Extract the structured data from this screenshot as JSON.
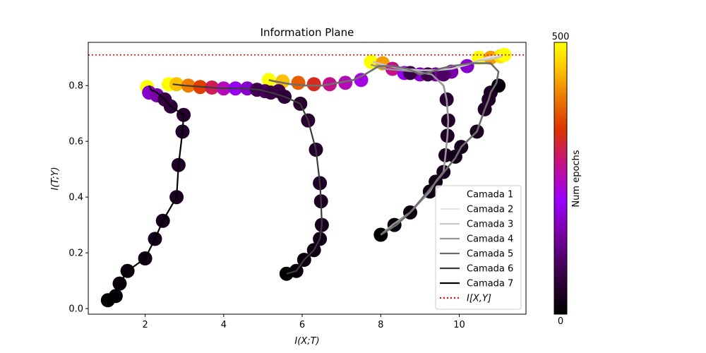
{
  "chart_data": {
    "type": "line",
    "title": "Information Plane",
    "xlabel": "I(X;T)",
    "ylabel": "I(T;Y)",
    "xlim": [
      0.55,
      11.7
    ],
    "ylim": [
      -0.02,
      0.955
    ],
    "xticks": [
      2,
      4,
      6,
      8,
      10
    ],
    "yticks": [
      0.0,
      0.2,
      0.4,
      0.6,
      0.8
    ],
    "xtick_labels": [
      "2",
      "4",
      "6",
      "8",
      "10"
    ],
    "ytick_labels": [
      "0.0",
      "0.2",
      "0.4",
      "0.6",
      "0.8"
    ],
    "grid": false,
    "legend_position": "lower-right",
    "reference_line": {
      "name": "I[X,Y]",
      "y": 0.91,
      "color": "#ff0000",
      "style": "dotted"
    },
    "colorbar": {
      "label": "Num epochs",
      "min_label": "0",
      "max_label": "500",
      "colormap": "gnuplot"
    },
    "series": [
      {
        "name": "Camada 1",
        "color": "#ffffff",
        "points": []
      },
      {
        "name": "Camada 2",
        "color": "#e6e6e6",
        "points": [
          [
            10.5,
            0.89
          ],
          [
            10.7,
            0.9
          ],
          [
            10.9,
            0.905
          ],
          [
            11.1,
            0.91
          ]
        ]
      },
      {
        "name": "Camada 3",
        "color": "#c8c8c8",
        "points": [
          [
            7.8,
            0.885
          ],
          [
            8.2,
            0.87
          ],
          [
            8.6,
            0.86
          ],
          [
            9.0,
            0.855
          ],
          [
            9.4,
            0.855
          ],
          [
            9.8,
            0.86
          ],
          [
            10.2,
            0.875
          ],
          [
            10.5,
            0.89
          ],
          [
            10.8,
            0.895
          ],
          [
            11.1,
            0.905
          ]
        ]
      },
      {
        "name": "Camada 4",
        "color": "#969696",
        "points": [
          [
            8.0,
            0.265
          ],
          [
            8.3,
            0.3
          ],
          [
            8.75,
            0.345
          ],
          [
            9.25,
            0.42
          ],
          [
            9.4,
            0.455
          ],
          [
            9.6,
            0.49
          ],
          [
            9.65,
            0.55
          ],
          [
            9.7,
            0.62
          ],
          [
            9.72,
            0.675
          ],
          [
            9.68,
            0.75
          ],
          [
            9.6,
            0.8
          ],
          [
            9.3,
            0.84
          ],
          [
            8.9,
            0.85
          ],
          [
            8.5,
            0.855
          ],
          [
            8.1,
            0.86
          ],
          [
            7.75,
            0.875
          ]
        ]
      },
      {
        "name": "Camada 5",
        "color": "#6e6e6e",
        "points": [
          [
            8.0,
            0.265
          ],
          [
            8.4,
            0.3
          ],
          [
            8.75,
            0.345
          ],
          [
            9.2,
            0.42
          ],
          [
            9.5,
            0.47
          ],
          [
            9.9,
            0.54
          ],
          [
            10.05,
            0.58
          ],
          [
            10.45,
            0.635
          ],
          [
            10.65,
            0.715
          ],
          [
            10.75,
            0.75
          ],
          [
            10.8,
            0.775
          ],
          [
            10.95,
            0.81
          ],
          [
            11.0,
            0.85
          ],
          [
            10.8,
            0.88
          ],
          [
            10.3,
            0.88
          ],
          [
            9.8,
            0.87
          ],
          [
            9.5,
            0.86
          ],
          [
            9.3,
            0.85
          ],
          [
            9.0,
            0.84
          ],
          [
            8.7,
            0.86
          ],
          [
            8.3,
            0.87
          ],
          [
            7.95,
            0.87
          ],
          [
            7.6,
            0.84
          ],
          [
            7.3,
            0.82
          ],
          [
            6.9,
            0.81
          ],
          [
            6.5,
            0.8
          ],
          [
            6.1,
            0.8
          ],
          [
            5.7,
            0.805
          ],
          [
            5.3,
            0.815
          ],
          [
            5.15,
            0.82
          ]
        ]
      },
      {
        "name": "Camada 6",
        "color": "#3c3c3c",
        "points": [
          [
            5.6,
            0.125
          ],
          [
            5.85,
            0.135
          ],
          [
            6.05,
            0.175
          ],
          [
            6.3,
            0.21
          ],
          [
            6.45,
            0.25
          ],
          [
            6.5,
            0.3
          ],
          [
            6.48,
            0.385
          ],
          [
            6.45,
            0.45
          ],
          [
            6.35,
            0.57
          ],
          [
            6.15,
            0.675
          ],
          [
            5.95,
            0.735
          ],
          [
            5.55,
            0.76
          ],
          [
            5.2,
            0.775
          ],
          [
            4.9,
            0.785
          ],
          [
            4.5,
            0.79
          ],
          [
            4.0,
            0.79
          ],
          [
            3.5,
            0.795
          ],
          [
            3.0,
            0.8
          ],
          [
            2.7,
            0.805
          ]
        ]
      },
      {
        "name": "Camada 7",
        "color": "#000000",
        "points": [
          [
            1.05,
            0.03
          ],
          [
            1.25,
            0.045
          ],
          [
            1.35,
            0.09
          ],
          [
            1.55,
            0.135
          ],
          [
            2.0,
            0.18
          ],
          [
            2.25,
            0.25
          ],
          [
            2.45,
            0.315
          ],
          [
            2.8,
            0.4
          ],
          [
            2.85,
            0.515
          ],
          [
            2.95,
            0.635
          ],
          [
            2.98,
            0.695
          ],
          [
            2.65,
            0.725
          ],
          [
            2.5,
            0.75
          ],
          [
            2.3,
            0.775
          ],
          [
            2.15,
            0.785
          ],
          [
            2.1,
            0.8
          ]
        ]
      }
    ],
    "markers": [
      [
        2.05,
        0.795,
        1.0
      ],
      [
        2.6,
        0.805,
        1.0
      ],
      [
        2.8,
        0.805,
        0.9
      ],
      [
        3.1,
        0.8,
        0.8
      ],
      [
        3.4,
        0.795,
        0.7
      ],
      [
        3.7,
        0.793,
        0.6
      ],
      [
        4.0,
        0.79,
        0.5
      ],
      [
        4.3,
        0.79,
        0.4
      ],
      [
        4.6,
        0.79,
        0.35
      ],
      [
        5.15,
        0.82,
        1.0
      ],
      [
        5.5,
        0.815,
        0.9
      ],
      [
        5.9,
        0.81,
        0.75
      ],
      [
        6.3,
        0.805,
        0.65
      ],
      [
        6.7,
        0.805,
        0.55
      ],
      [
        7.1,
        0.81,
        0.5
      ],
      [
        7.5,
        0.82,
        0.45
      ],
      [
        7.75,
        0.885,
        1.0
      ],
      [
        8.05,
        0.88,
        0.85
      ],
      [
        8.3,
        0.86,
        0.55
      ],
      [
        8.6,
        0.845,
        0.4
      ],
      [
        9.0,
        0.84,
        0.35
      ],
      [
        9.4,
        0.84,
        0.3
      ],
      [
        9.8,
        0.85,
        0.3
      ],
      [
        10.2,
        0.87,
        0.35
      ],
      [
        10.5,
        0.9,
        1.0
      ],
      [
        10.8,
        0.9,
        0.85
      ],
      [
        11.05,
        0.905,
        0.95
      ],
      [
        11.15,
        0.91,
        1.0
      ],
      [
        2.1,
        0.775,
        0.35
      ],
      [
        2.3,
        0.765,
        0.3
      ],
      [
        5.05,
        0.78,
        0.2
      ],
      [
        5.4,
        0.78,
        0.15
      ],
      [
        5.6,
        0.125,
        0.0
      ],
      [
        5.85,
        0.135,
        0.02
      ],
      [
        6.05,
        0.175,
        0.03
      ],
      [
        6.3,
        0.21,
        0.04
      ],
      [
        6.45,
        0.25,
        0.05
      ],
      [
        6.5,
        0.3,
        0.06
      ],
      [
        6.48,
        0.385,
        0.07
      ],
      [
        6.45,
        0.45,
        0.08
      ],
      [
        6.35,
        0.57,
        0.09
      ],
      [
        6.15,
        0.675,
        0.1
      ],
      [
        5.95,
        0.735,
        0.1
      ],
      [
        5.55,
        0.76,
        0.12
      ],
      [
        5.2,
        0.775,
        0.14
      ],
      [
        4.85,
        0.785,
        0.16
      ],
      [
        1.05,
        0.03,
        0.0
      ],
      [
        1.25,
        0.045,
        0.01
      ],
      [
        1.35,
        0.09,
        0.02
      ],
      [
        1.55,
        0.135,
        0.03
      ],
      [
        2.0,
        0.18,
        0.04
      ],
      [
        2.25,
        0.25,
        0.05
      ],
      [
        2.45,
        0.315,
        0.06
      ],
      [
        2.8,
        0.4,
        0.07
      ],
      [
        2.85,
        0.515,
        0.08
      ],
      [
        2.95,
        0.635,
        0.09
      ],
      [
        2.98,
        0.695,
        0.1
      ],
      [
        2.65,
        0.725,
        0.12
      ],
      [
        2.5,
        0.75,
        0.14
      ],
      [
        8.0,
        0.265,
        0.0
      ],
      [
        8.35,
        0.3,
        0.02
      ],
      [
        8.75,
        0.345,
        0.03
      ],
      [
        9.25,
        0.42,
        0.04
      ],
      [
        9.4,
        0.455,
        0.05
      ],
      [
        9.6,
        0.49,
        0.06
      ],
      [
        9.65,
        0.55,
        0.07
      ],
      [
        9.7,
        0.62,
        0.08
      ],
      [
        9.72,
        0.675,
        0.09
      ],
      [
        9.68,
        0.75,
        0.1
      ],
      [
        9.9,
        0.545,
        0.05
      ],
      [
        10.05,
        0.58,
        0.06
      ],
      [
        10.45,
        0.635,
        0.07
      ],
      [
        10.65,
        0.715,
        0.08
      ],
      [
        10.75,
        0.75,
        0.08
      ],
      [
        10.8,
        0.775,
        0.08
      ],
      [
        11.0,
        0.8,
        0.02
      ],
      [
        9.2,
        0.84,
        0.15
      ],
      [
        9.6,
        0.84,
        0.2
      ],
      [
        8.75,
        0.845,
        0.15
      ]
    ]
  }
}
